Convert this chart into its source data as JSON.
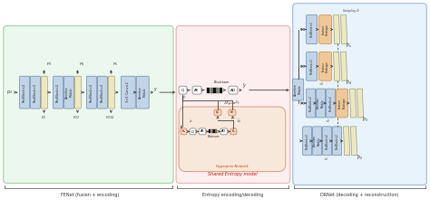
{
  "fig_width": 4.74,
  "fig_height": 2.41,
  "dpi": 100,
  "bg": "#ffffff",
  "fenet_bg": "#e8f5ea",
  "entropy_bg": "#fdeaec",
  "drnet_bg": "#e4f0fb",
  "hyperprior_bg": "#f8e8d8",
  "box_blue": "#c2d4e8",
  "box_blue_dark": "#a8c0dc",
  "box_yellow": "#eee8c0",
  "box_orange": "#f0c898",
  "box_pink": "#f0b8b0",
  "footer_labels": [
    "FENet (fusion + encoding)",
    "Entropy encoding/decoding",
    "DRNet (decoding + reconstruction)"
  ]
}
